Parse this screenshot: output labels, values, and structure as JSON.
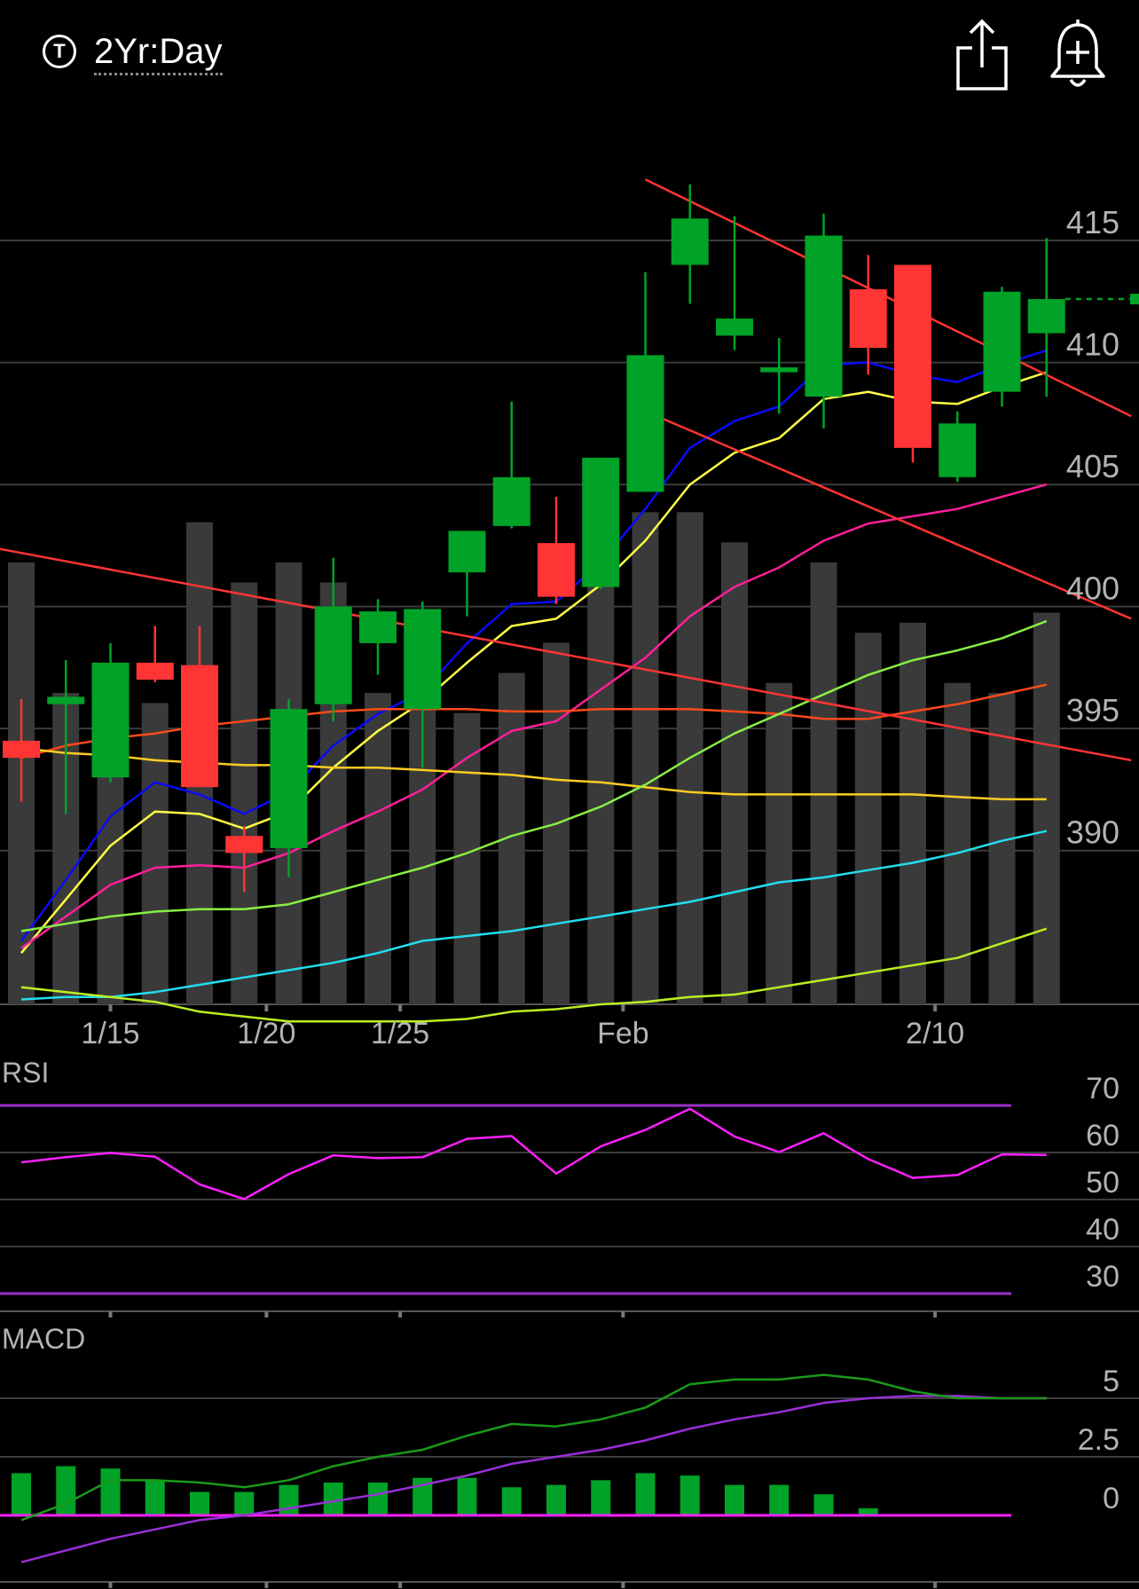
{
  "header": {
    "ticker_icon_letter": "T",
    "timeframe": "2Yr:Day",
    "share_icon": "share-icon",
    "alert_icon": "add-alert-bell-icon"
  },
  "colors": {
    "up": "#00a327",
    "down": "#ff3434",
    "volume": "#3a3a3a",
    "grid": "#3c3c3c",
    "rsi_line": "#ff1fff",
    "rsi_bounds": "#9a2fc9",
    "macd_line": "#1a9a1a",
    "signal_line": "#9a2fd9",
    "histogram": "#00a327",
    "zero_line": "#ff1fff",
    "trendline": "#ff3434"
  },
  "chart_data": [
    {
      "type": "candlestick",
      "price_ticks": [
        415,
        410,
        405,
        400,
        395,
        390
      ],
      "ylim": [
        383.7,
        419.4
      ],
      "x_labels": [
        {
          "label": "1/15",
          "index": 2
        },
        {
          "label": "1/20",
          "index": 5.5
        },
        {
          "label": "1/25",
          "index": 8.5
        },
        {
          "label": "Feb",
          "index": 13.5
        },
        {
          "label": "2/10",
          "index": 20.5
        }
      ],
      "candles": [
        {
          "o": 394.5,
          "h": 396.2,
          "l": 392.0,
          "c": 393.8
        },
        {
          "o": 396.0,
          "h": 397.8,
          "l": 391.5,
          "c": 396.3
        },
        {
          "o": 393.0,
          "h": 398.5,
          "l": 392.8,
          "c": 397.7
        },
        {
          "o": 397.7,
          "h": 399.2,
          "l": 396.9,
          "c": 397.0
        },
        {
          "o": 397.6,
          "h": 399.2,
          "l": 392.6,
          "c": 392.6
        },
        {
          "o": 390.6,
          "h": 391.0,
          "l": 388.3,
          "c": 389.9
        },
        {
          "o": 390.1,
          "h": 396.2,
          "l": 388.9,
          "c": 395.8
        },
        {
          "o": 396.0,
          "h": 402.0,
          "l": 395.3,
          "c": 400.0
        },
        {
          "o": 398.5,
          "h": 400.3,
          "l": 397.2,
          "c": 399.8
        },
        {
          "o": 395.8,
          "h": 400.2,
          "l": 393.4,
          "c": 399.9
        },
        {
          "o": 401.4,
          "h": 402.9,
          "l": 399.6,
          "c": 403.1
        },
        {
          "o": 403.3,
          "h": 408.4,
          "l": 403.2,
          "c": 405.3
        },
        {
          "o": 402.6,
          "h": 404.5,
          "l": 400.1,
          "c": 400.4
        },
        {
          "o": 400.8,
          "h": 405.9,
          "l": 400.7,
          "c": 406.1
        },
        {
          "o": 404.7,
          "h": 413.7,
          "l": 404.7,
          "c": 410.3
        },
        {
          "o": 414.0,
          "h": 417.3,
          "l": 412.4,
          "c": 415.9
        },
        {
          "o": 411.1,
          "h": 416.0,
          "l": 410.5,
          "c": 411.8
        },
        {
          "o": 409.6,
          "h": 411.0,
          "l": 407.9,
          "c": 409.8
        },
        {
          "o": 408.6,
          "h": 416.1,
          "l": 407.3,
          "c": 415.2
        },
        {
          "o": 413.0,
          "h": 414.4,
          "l": 409.5,
          "c": 410.6
        },
        {
          "o": 414.0,
          "h": 414.0,
          "l": 405.9,
          "c": 406.5
        },
        {
          "o": 405.3,
          "h": 408.0,
          "l": 405.1,
          "c": 407.5
        },
        {
          "o": 408.8,
          "h": 413.1,
          "l": 408.2,
          "c": 412.9
        },
        {
          "o": 411.2,
          "h": 415.1,
          "l": 408.6,
          "c": 412.6
        }
      ],
      "volume": [
        0.44,
        0.31,
        0.3,
        0.3,
        0.48,
        0.42,
        0.44,
        0.42,
        0.31,
        0.36,
        0.29,
        0.33,
        0.36,
        0.43,
        0.49,
        0.49,
        0.46,
        0.32,
        0.44,
        0.37,
        0.38,
        0.32,
        0.31,
        0.39
      ],
      "last_price": 412.6,
      "moving_averages": [
        {
          "color": "#0a0aff",
          "values": [
            386.3,
            388.8,
            391.4,
            392.8,
            392.3,
            391.5,
            392.4,
            394.3,
            395.6,
            396.5,
            398.5,
            400.1,
            400.2,
            401.8,
            404.0,
            406.5,
            407.6,
            408.2,
            409.9,
            410.0,
            409.5,
            409.2,
            409.9,
            410.5
          ]
        },
        {
          "color": "#ffff44",
          "values": [
            385.8,
            388.0,
            390.2,
            391.6,
            391.5,
            390.9,
            391.6,
            393.4,
            394.9,
            396.1,
            397.7,
            399.2,
            399.5,
            400.9,
            402.7,
            405.0,
            406.3,
            406.9,
            408.5,
            408.8,
            408.4,
            408.3,
            409.0,
            409.6
          ]
        },
        {
          "color": "#ff1f9a",
          "values": [
            386.0,
            387.3,
            388.6,
            389.3,
            389.4,
            389.3,
            389.9,
            390.8,
            391.6,
            392.5,
            393.8,
            394.9,
            395.3,
            396.6,
            397.9,
            399.6,
            400.8,
            401.6,
            402.7,
            403.4,
            403.7,
            404.0,
            404.5,
            405.0
          ]
        },
        {
          "color": "#ff4a1a",
          "values": [
            393.8,
            394.3,
            394.6,
            394.8,
            395.1,
            395.3,
            395.5,
            395.7,
            395.8,
            395.8,
            395.8,
            395.7,
            395.7,
            395.8,
            395.8,
            395.8,
            395.7,
            395.6,
            395.4,
            395.4,
            395.7,
            396.0,
            396.4,
            396.8
          ]
        },
        {
          "color": "#ffcc22",
          "values": [
            394.2,
            394.0,
            393.9,
            393.7,
            393.6,
            393.5,
            393.5,
            393.4,
            393.4,
            393.3,
            393.2,
            393.1,
            392.9,
            392.8,
            392.6,
            392.4,
            392.3,
            392.3,
            392.3,
            392.3,
            392.3,
            392.2,
            392.1,
            392.1
          ]
        },
        {
          "color": "#88ee44",
          "values": [
            386.7,
            387.0,
            387.3,
            387.5,
            387.6,
            387.6,
            387.8,
            388.3,
            388.8,
            389.3,
            389.9,
            390.6,
            391.1,
            391.8,
            392.7,
            393.8,
            394.8,
            395.6,
            396.4,
            397.2,
            397.8,
            398.2,
            398.7,
            399.4
          ]
        },
        {
          "color": "#22ddee",
          "values": [
            383.9,
            384.0,
            384.0,
            384.2,
            384.5,
            384.8,
            385.1,
            385.4,
            385.8,
            386.3,
            386.5,
            386.7,
            387.0,
            387.3,
            387.6,
            387.9,
            388.3,
            388.7,
            388.9,
            389.2,
            389.5,
            389.9,
            390.4,
            390.8
          ]
        },
        {
          "color": "#bbee22",
          "values": [
            384.4,
            384.2,
            384.0,
            383.8,
            383.4,
            383.2,
            383.0,
            383.0,
            383.0,
            383.0,
            383.1,
            383.4,
            383.5,
            383.7,
            383.8,
            384.0,
            384.1,
            384.4,
            384.7,
            385.0,
            385.3,
            385.6,
            386.2,
            386.8
          ]
        }
      ],
      "trendlines": [
        {
          "from": {
            "i": -0.6,
            "p": 402.4
          },
          "to": {
            "i": 24.9,
            "p": 393.7
          }
        },
        {
          "from": {
            "i": 14.0,
            "p": 417.5
          },
          "to": {
            "i": 24.9,
            "p": 407.8
          }
        },
        {
          "from": {
            "i": 14.0,
            "p": 408.0
          },
          "to": {
            "i": 24.9,
            "p": 399.5
          }
        }
      ]
    },
    {
      "type": "line",
      "title": "RSI",
      "y_ticks": [
        70,
        60,
        50,
        40,
        30
      ],
      "ylim": [
        26,
        74
      ],
      "bounds": [
        70,
        30
      ],
      "values": [
        57.9,
        59.0,
        59.9,
        59.1,
        53.2,
        50.1,
        55.4,
        59.4,
        58.8,
        59.0,
        62.9,
        63.5,
        55.5,
        61.3,
        64.8,
        69.3,
        63.4,
        60.1,
        64.1,
        58.6,
        54.6,
        55.2,
        59.6,
        59.5
      ]
    },
    {
      "type": "line",
      "title": "MACD",
      "y_ticks": [
        5,
        2.5,
        0
      ],
      "ylim": [
        -2.8,
        6.4
      ],
      "series": [
        {
          "role": "macd",
          "values": [
            -0.2,
            0.5,
            1.5,
            1.5,
            1.4,
            1.2,
            1.5,
            2.1,
            2.5,
            2.8,
            3.4,
            3.9,
            3.8,
            4.1,
            4.6,
            5.6,
            5.8,
            5.8,
            6.0,
            5.8,
            5.3,
            5.0,
            5.0,
            5.0
          ]
        },
        {
          "role": "signal",
          "values": [
            -2.0,
            -1.5,
            -1.0,
            -0.6,
            -0.2,
            0.0,
            0.3,
            0.6,
            0.9,
            1.3,
            1.7,
            2.2,
            2.5,
            2.8,
            3.2,
            3.7,
            4.1,
            4.4,
            4.8,
            5.0,
            5.1,
            5.1,
            5.0,
            5.0
          ]
        }
      ],
      "histogram": [
        1.8,
        2.1,
        2.0,
        1.5,
        1.0,
        1.0,
        1.3,
        1.4,
        1.4,
        1.6,
        1.6,
        1.2,
        1.3,
        1.5,
        1.8,
        1.7,
        1.3,
        1.3,
        0.9,
        0.3,
        0,
        0,
        0,
        0
      ]
    }
  ]
}
